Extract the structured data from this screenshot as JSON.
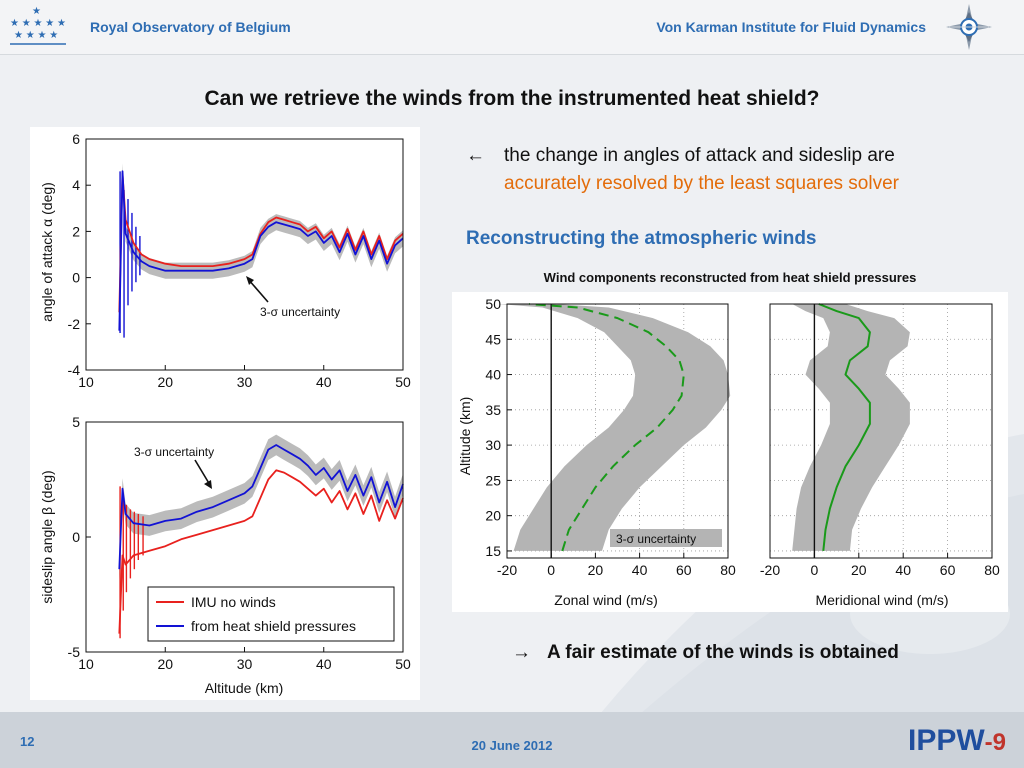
{
  "header": {
    "org_left": "Royal Observatory of Belgium",
    "org_right": "Von Karman Institute for Fluid Dynamics"
  },
  "title": "Can we retrieve the winds from the instrumented heat shield?",
  "bullet": {
    "arrow": "←",
    "line1": "the change in angles of attack and sideslip are",
    "line2": "accurately resolved by the least squares solver"
  },
  "section_heading": "Reconstructing the atmospheric winds",
  "wind_caption": "Wind components reconstructed from heat shield pressures",
  "conclusion": {
    "arrow": "→",
    "text": "A fair estimate of the winds is obtained"
  },
  "footer": {
    "slide_number": "12",
    "date": "20 June 2012",
    "logo_main": "IPPW",
    "logo_suffix": "-9"
  },
  "colors": {
    "accent_blue": "#2e6db3",
    "highlight_orange": "#e36c0a",
    "imu_red": "#e8211e",
    "shield_blue": "#1212d4",
    "wind_green": "#1a9a1a",
    "band_gray": "#b4b4b4"
  },
  "chart_data": [
    {
      "type": "line",
      "ylabel": "angle of attack α (deg)",
      "xlabel": "",
      "xlim": [
        10,
        50
      ],
      "ylim": [
        -4,
        6
      ],
      "xticks": [
        "10",
        "20",
        "30",
        "40",
        "50"
      ],
      "yticks": [
        "-4",
        "-2",
        "0",
        "2",
        "4",
        "6"
      ],
      "annotation": "3-σ uncertainty",
      "grid": false,
      "series": [
        {
          "name": "IMU no winds",
          "x": [
            14.2,
            14.6,
            15,
            16,
            17,
            18,
            20,
            22,
            24,
            26,
            28,
            30,
            31,
            32,
            33,
            34,
            35,
            36,
            37,
            38,
            39,
            40,
            41,
            42,
            43,
            44,
            45,
            46,
            47,
            48,
            49,
            50
          ],
          "values": [
            -1.5,
            4.5,
            2.5,
            1.5,
            1.0,
            0.8,
            0.6,
            0.5,
            0.5,
            0.5,
            0.6,
            0.8,
            1.0,
            1.9,
            2.4,
            2.6,
            2.5,
            2.4,
            2.3,
            2.0,
            2.2,
            1.7,
            2.0,
            1.3,
            2.1,
            1.2,
            2.0,
            1.0,
            1.8,
            0.8,
            1.6,
            1.9
          ]
        },
        {
          "name": "from heat shield pressures",
          "x": [
            14.2,
            14.6,
            15,
            16,
            17,
            18,
            20,
            22,
            24,
            26,
            28,
            30,
            31,
            32,
            33,
            34,
            35,
            36,
            37,
            38,
            39,
            40,
            41,
            42,
            43,
            44,
            45,
            46,
            47,
            48,
            49,
            50
          ],
          "values": [
            -2.3,
            4.6,
            1.9,
            1.1,
            0.7,
            0.5,
            0.3,
            0.3,
            0.3,
            0.3,
            0.4,
            0.6,
            0.8,
            1.8,
            2.2,
            2.4,
            2.3,
            2.2,
            2.1,
            1.8,
            2.0,
            1.5,
            1.8,
            1.1,
            1.9,
            1.0,
            1.8,
            0.8,
            1.6,
            0.6,
            1.4,
            1.7
          ]
        }
      ]
    },
    {
      "type": "line",
      "ylabel": "sideslip angle β (deg)",
      "xlabel": "Altitude (km)",
      "xlim": [
        10,
        50
      ],
      "ylim": [
        -5,
        5
      ],
      "xticks": [
        "10",
        "20",
        "30",
        "40",
        "50"
      ],
      "yticks": [
        "-5",
        "0",
        "5"
      ],
      "annotation": "3-σ uncertainty",
      "legend_position": "bottom-right",
      "grid": false,
      "series": [
        {
          "name": "IMU no winds",
          "x": [
            14.2,
            14.6,
            15,
            16,
            18,
            20,
            22,
            24,
            26,
            28,
            30,
            31,
            32,
            33,
            34,
            35,
            36,
            37,
            38,
            39,
            40,
            41,
            42,
            43,
            44,
            45,
            46,
            47,
            48,
            49,
            50
          ],
          "values": [
            -4.2,
            -0.8,
            -1.2,
            -0.8,
            -0.6,
            -0.4,
            -0.1,
            0.1,
            0.3,
            0.5,
            0.7,
            0.9,
            1.7,
            2.5,
            2.9,
            2.8,
            2.6,
            2.4,
            2.1,
            1.8,
            2.1,
            1.5,
            2.0,
            1.2,
            1.9,
            1.0,
            1.8,
            0.7,
            1.6,
            0.8,
            1.7
          ]
        },
        {
          "name": "from heat shield pressures",
          "x": [
            14.2,
            14.6,
            15,
            16,
            18,
            20,
            22,
            24,
            26,
            28,
            30,
            31,
            32,
            33,
            34,
            35,
            36,
            37,
            38,
            39,
            40,
            41,
            42,
            43,
            44,
            45,
            46,
            47,
            48,
            49,
            50
          ],
          "values": [
            -1.4,
            2.1,
            1.0,
            0.6,
            0.5,
            0.7,
            0.8,
            1.1,
            1.3,
            1.6,
            1.9,
            2.2,
            3.0,
            3.8,
            4.0,
            3.8,
            3.6,
            3.4,
            3.1,
            2.7,
            3.0,
            2.5,
            2.9,
            2.0,
            2.7,
            1.8,
            2.6,
            1.5,
            2.4,
            1.3,
            2.3
          ]
        }
      ]
    },
    {
      "type": "line",
      "xlabel": "Zonal wind (m/s)",
      "ylabel": "Altitude (km)",
      "xlim": [
        -20,
        80
      ],
      "ylim": [
        14,
        50
      ],
      "xticks": [
        "-20",
        "0",
        "20",
        "40",
        "60",
        "80"
      ],
      "yticks": [
        "15",
        "20",
        "25",
        "30",
        "35",
        "40",
        "45",
        "50"
      ],
      "annotation": "3-σ uncertainty",
      "grid": true,
      "series": [
        {
          "x": [
            5,
            8,
            14,
            20,
            28,
            38,
            48,
            55,
            59,
            60,
            58,
            52,
            44,
            30,
            12,
            -10
          ],
          "values": [
            15,
            18,
            21,
            24,
            27,
            30,
            32.5,
            35,
            37,
            40,
            42,
            44,
            46,
            48,
            49.5,
            50
          ]
        }
      ]
    },
    {
      "type": "line",
      "xlabel": "Meridional wind (m/s)",
      "ylabel": "",
      "xlim": [
        -20,
        80
      ],
      "ylim": [
        14,
        50
      ],
      "xticks": [
        "-20",
        "0",
        "20",
        "40",
        "60",
        "80"
      ],
      "yticks": [],
      "grid": true,
      "series": [
        {
          "x": [
            4,
            5,
            7,
            10,
            14,
            20,
            25,
            25,
            20,
            14,
            16,
            24,
            25,
            20,
            10,
            2
          ],
          "values": [
            15,
            18,
            21,
            24,
            27,
            30,
            33,
            36,
            38,
            40,
            42,
            44,
            46,
            48,
            49,
            50
          ]
        }
      ]
    }
  ]
}
